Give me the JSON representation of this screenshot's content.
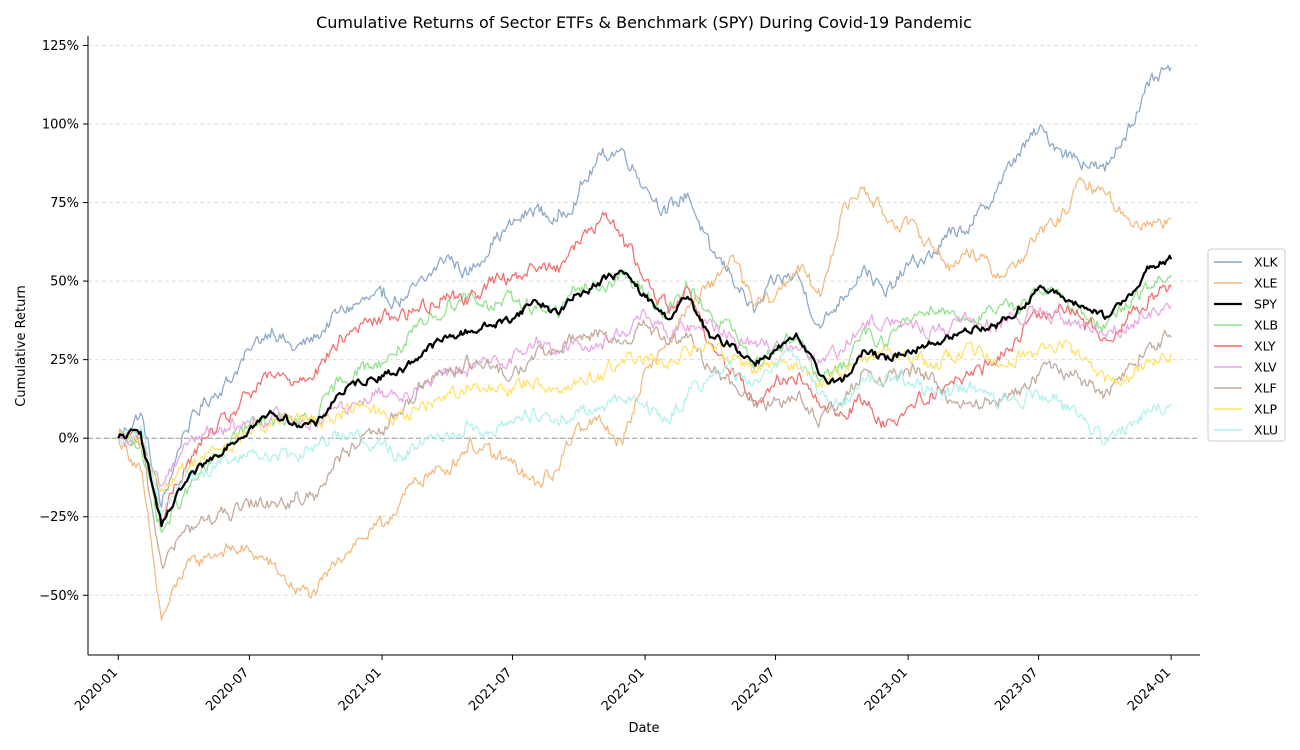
{
  "chart_data": {
    "type": "line",
    "title": "Cumulative Returns of Sector ETFs & Benchmark (SPY) During Covid-19 Pandemic",
    "xlabel": "Date",
    "ylabel": "Cumulative Return",
    "x_range": [
      "2019-11-20",
      "2024-02-10"
    ],
    "ylim": [
      -0.69,
      1.28
    ],
    "x_ticks": [
      "2020-01",
      "2020-07",
      "2021-01",
      "2021-07",
      "2022-01",
      "2022-07",
      "2023-01",
      "2023-07",
      "2024-01"
    ],
    "x_tick_dates": [
      "2020-01-01",
      "2020-07-01",
      "2021-01-01",
      "2021-07-01",
      "2022-01-01",
      "2022-07-01",
      "2023-01-01",
      "2023-07-01",
      "2024-01-01"
    ],
    "y_ticks": [
      -0.5,
      -0.25,
      0,
      0.25,
      0.5,
      0.75,
      1.0,
      1.25
    ],
    "y_tick_labels": [
      "−50%",
      "−25%",
      "0%",
      "25%",
      "50%",
      "75%",
      "100%",
      "125%"
    ],
    "grid": "horizontal dashed",
    "baseline": 0,
    "legend_position": "right",
    "series": [
      {
        "name": "XLK",
        "color": "#8aa7c4",
        "dates": [
          "2020-01",
          "2020-02",
          "2020-03",
          "2020-04",
          "2020-05",
          "2020-06",
          "2020-07",
          "2020-08",
          "2020-09",
          "2020-10",
          "2020-11",
          "2020-12",
          "2021-01",
          "2021-02",
          "2021-03",
          "2021-04",
          "2021-05",
          "2021-06",
          "2021-07",
          "2021-08",
          "2021-09",
          "2021-10",
          "2021-11",
          "2021-12",
          "2022-01",
          "2022-02",
          "2022-03",
          "2022-04",
          "2022-05",
          "2022-06",
          "2022-07",
          "2022-08",
          "2022-09",
          "2022-10",
          "2022-11",
          "2022-12",
          "2023-01",
          "2023-02",
          "2023-03",
          "2023-04",
          "2023-05",
          "2023-06",
          "2023-07",
          "2023-08",
          "2023-09",
          "2023-10",
          "2023-11",
          "2023-12",
          "2024-01"
        ],
        "values": [
          0.0,
          0.08,
          -0.22,
          0.02,
          0.12,
          0.18,
          0.28,
          0.35,
          0.28,
          0.32,
          0.4,
          0.43,
          0.45,
          0.44,
          0.5,
          0.58,
          0.52,
          0.62,
          0.68,
          0.73,
          0.69,
          0.78,
          0.9,
          0.92,
          0.8,
          0.72,
          0.78,
          0.6,
          0.52,
          0.4,
          0.5,
          0.52,
          0.35,
          0.45,
          0.55,
          0.45,
          0.55,
          0.58,
          0.65,
          0.68,
          0.78,
          0.9,
          0.98,
          0.92,
          0.88,
          0.85,
          0.98,
          1.12,
          1.18
        ]
      },
      {
        "name": "XLE",
        "color": "#f0b87a",
        "dates": [
          "2020-01",
          "2020-02",
          "2020-03",
          "2020-04",
          "2020-05",
          "2020-06",
          "2020-07",
          "2020-08",
          "2020-09",
          "2020-10",
          "2020-11",
          "2020-12",
          "2021-01",
          "2021-02",
          "2021-03",
          "2021-04",
          "2021-05",
          "2021-06",
          "2021-07",
          "2021-08",
          "2021-09",
          "2021-10",
          "2021-11",
          "2021-12",
          "2022-01",
          "2022-02",
          "2022-03",
          "2022-04",
          "2022-05",
          "2022-06",
          "2022-07",
          "2022-08",
          "2022-09",
          "2022-10",
          "2022-11",
          "2022-12",
          "2023-01",
          "2023-02",
          "2023-03",
          "2023-04",
          "2023-05",
          "2023-06",
          "2023-07",
          "2023-08",
          "2023-09",
          "2023-10",
          "2023-11",
          "2023-12",
          "2024-01"
        ],
        "values": [
          0.0,
          -0.1,
          -0.58,
          -0.42,
          -0.38,
          -0.35,
          -0.36,
          -0.4,
          -0.48,
          -0.5,
          -0.38,
          -0.32,
          -0.28,
          -0.18,
          -0.12,
          -0.1,
          -0.02,
          -0.05,
          -0.08,
          -0.15,
          -0.1,
          0.05,
          0.05,
          -0.02,
          0.22,
          0.3,
          0.42,
          0.48,
          0.58,
          0.42,
          0.45,
          0.55,
          0.45,
          0.72,
          0.8,
          0.7,
          0.68,
          0.62,
          0.55,
          0.6,
          0.52,
          0.55,
          0.65,
          0.7,
          0.82,
          0.78,
          0.7,
          0.68,
          0.7
        ]
      },
      {
        "name": "SPY",
        "color": "#000000",
        "dates": [
          "2020-01",
          "2020-02",
          "2020-03",
          "2020-04",
          "2020-05",
          "2020-06",
          "2020-07",
          "2020-08",
          "2020-09",
          "2020-10",
          "2020-11",
          "2020-12",
          "2021-01",
          "2021-02",
          "2021-03",
          "2021-04",
          "2021-05",
          "2021-06",
          "2021-07",
          "2021-08",
          "2021-09",
          "2021-10",
          "2021-11",
          "2021-12",
          "2022-01",
          "2022-02",
          "2022-03",
          "2022-04",
          "2022-05",
          "2022-06",
          "2022-07",
          "2022-08",
          "2022-09",
          "2022-10",
          "2022-11",
          "2022-12",
          "2023-01",
          "2023-02",
          "2023-03",
          "2023-04",
          "2023-05",
          "2023-06",
          "2023-07",
          "2023-08",
          "2023-09",
          "2023-10",
          "2023-11",
          "2023-12",
          "2024-01"
        ],
        "values": [
          0.0,
          0.02,
          -0.28,
          -0.15,
          -0.08,
          -0.02,
          0.03,
          0.08,
          0.05,
          0.04,
          0.14,
          0.18,
          0.2,
          0.22,
          0.28,
          0.32,
          0.34,
          0.36,
          0.38,
          0.44,
          0.4,
          0.46,
          0.5,
          0.53,
          0.45,
          0.38,
          0.45,
          0.32,
          0.3,
          0.24,
          0.28,
          0.32,
          0.2,
          0.18,
          0.28,
          0.25,
          0.28,
          0.3,
          0.32,
          0.35,
          0.36,
          0.4,
          0.48,
          0.45,
          0.42,
          0.38,
          0.45,
          0.54,
          0.57
        ]
      },
      {
        "name": "XLB",
        "color": "#8ee08a",
        "dates": [
          "2020-01",
          "2020-02",
          "2020-03",
          "2020-04",
          "2020-05",
          "2020-06",
          "2020-07",
          "2020-08",
          "2020-09",
          "2020-10",
          "2020-11",
          "2020-12",
          "2021-01",
          "2021-02",
          "2021-03",
          "2021-04",
          "2021-05",
          "2021-06",
          "2021-07",
          "2021-08",
          "2021-09",
          "2021-10",
          "2021-11",
          "2021-12",
          "2022-01",
          "2022-02",
          "2022-03",
          "2022-04",
          "2022-05",
          "2022-06",
          "2022-07",
          "2022-08",
          "2022-09",
          "2022-10",
          "2022-11",
          "2022-12",
          "2023-01",
          "2023-02",
          "2023-03",
          "2023-04",
          "2023-05",
          "2023-06",
          "2023-07",
          "2023-08",
          "2023-09",
          "2023-10",
          "2023-11",
          "2023-12",
          "2024-01"
        ],
        "values": [
          0.0,
          -0.02,
          -0.3,
          -0.18,
          -0.1,
          -0.02,
          0.04,
          0.06,
          0.05,
          0.06,
          0.18,
          0.22,
          0.24,
          0.3,
          0.36,
          0.42,
          0.46,
          0.42,
          0.44,
          0.42,
          0.4,
          0.48,
          0.48,
          0.52,
          0.46,
          0.4,
          0.48,
          0.4,
          0.35,
          0.22,
          0.3,
          0.32,
          0.18,
          0.22,
          0.35,
          0.3,
          0.38,
          0.42,
          0.4,
          0.38,
          0.4,
          0.42,
          0.48,
          0.45,
          0.4,
          0.35,
          0.42,
          0.48,
          0.52
        ]
      },
      {
        "name": "XLY",
        "color": "#f06a6a",
        "dates": [
          "2020-01",
          "2020-02",
          "2020-03",
          "2020-04",
          "2020-05",
          "2020-06",
          "2020-07",
          "2020-08",
          "2020-09",
          "2020-10",
          "2020-11",
          "2020-12",
          "2021-01",
          "2021-02",
          "2021-03",
          "2021-04",
          "2021-05",
          "2021-06",
          "2021-07",
          "2021-08",
          "2021-09",
          "2021-10",
          "2021-11",
          "2021-12",
          "2022-01",
          "2022-02",
          "2022-03",
          "2022-04",
          "2022-05",
          "2022-06",
          "2022-07",
          "2022-08",
          "2022-09",
          "2022-10",
          "2022-11",
          "2022-12",
          "2023-01",
          "2023-02",
          "2023-03",
          "2023-04",
          "2023-05",
          "2023-06",
          "2023-07",
          "2023-08",
          "2023-09",
          "2023-10",
          "2023-11",
          "2023-12",
          "2024-01"
        ],
        "values": [
          0.0,
          0.01,
          -0.26,
          -0.1,
          0.0,
          0.06,
          0.14,
          0.2,
          0.18,
          0.22,
          0.3,
          0.36,
          0.38,
          0.4,
          0.42,
          0.46,
          0.44,
          0.5,
          0.52,
          0.54,
          0.55,
          0.62,
          0.7,
          0.65,
          0.5,
          0.42,
          0.48,
          0.3,
          0.22,
          0.12,
          0.18,
          0.2,
          0.1,
          0.08,
          0.12,
          0.04,
          0.1,
          0.14,
          0.18,
          0.2,
          0.24,
          0.32,
          0.4,
          0.42,
          0.38,
          0.32,
          0.38,
          0.45,
          0.48
        ]
      },
      {
        "name": "XLV",
        "color": "#e8a4e2",
        "dates": [
          "2020-01",
          "2020-02",
          "2020-03",
          "2020-04",
          "2020-05",
          "2020-06",
          "2020-07",
          "2020-08",
          "2020-09",
          "2020-10",
          "2020-11",
          "2020-12",
          "2021-01",
          "2021-02",
          "2021-03",
          "2021-04",
          "2021-05",
          "2021-06",
          "2021-07",
          "2021-08",
          "2021-09",
          "2021-10",
          "2021-11",
          "2021-12",
          "2022-01",
          "2022-02",
          "2022-03",
          "2022-04",
          "2022-05",
          "2022-06",
          "2022-07",
          "2022-08",
          "2022-09",
          "2022-10",
          "2022-11",
          "2022-12",
          "2023-01",
          "2023-02",
          "2023-03",
          "2023-04",
          "2023-05",
          "2023-06",
          "2023-07",
          "2023-08",
          "2023-09",
          "2023-10",
          "2023-11",
          "2023-12",
          "2024-01"
        ],
        "values": [
          0.0,
          -0.02,
          -0.15,
          -0.02,
          0.02,
          0.03,
          0.05,
          0.07,
          0.06,
          0.05,
          0.1,
          0.12,
          0.15,
          0.14,
          0.18,
          0.2,
          0.22,
          0.24,
          0.26,
          0.3,
          0.28,
          0.3,
          0.3,
          0.34,
          0.4,
          0.32,
          0.36,
          0.38,
          0.32,
          0.3,
          0.3,
          0.28,
          0.24,
          0.28,
          0.36,
          0.38,
          0.36,
          0.34,
          0.35,
          0.38,
          0.36,
          0.38,
          0.4,
          0.38,
          0.36,
          0.33,
          0.36,
          0.4,
          0.42
        ]
      },
      {
        "name": "XLF",
        "color": "#c0a898",
        "dates": [
          "2020-01",
          "2020-02",
          "2020-03",
          "2020-04",
          "2020-05",
          "2020-06",
          "2020-07",
          "2020-08",
          "2020-09",
          "2020-10",
          "2020-11",
          "2020-12",
          "2021-01",
          "2021-02",
          "2021-03",
          "2021-04",
          "2021-05",
          "2021-06",
          "2021-07",
          "2021-08",
          "2021-09",
          "2021-10",
          "2021-11",
          "2021-12",
          "2022-01",
          "2022-02",
          "2022-03",
          "2022-04",
          "2022-05",
          "2022-06",
          "2022-07",
          "2022-08",
          "2022-09",
          "2022-10",
          "2022-11",
          "2022-12",
          "2023-01",
          "2023-02",
          "2023-03",
          "2023-04",
          "2023-05",
          "2023-06",
          "2023-07",
          "2023-08",
          "2023-09",
          "2023-10",
          "2023-11",
          "2023-12",
          "2024-01"
        ],
        "values": [
          0.0,
          -0.02,
          -0.4,
          -0.3,
          -0.26,
          -0.24,
          -0.22,
          -0.2,
          -0.2,
          -0.18,
          -0.06,
          -0.02,
          0.02,
          0.1,
          0.18,
          0.22,
          0.24,
          0.22,
          0.2,
          0.26,
          0.28,
          0.32,
          0.34,
          0.3,
          0.36,
          0.3,
          0.32,
          0.22,
          0.18,
          0.1,
          0.12,
          0.14,
          0.06,
          0.1,
          0.22,
          0.18,
          0.22,
          0.2,
          0.12,
          0.1,
          0.12,
          0.14,
          0.2,
          0.22,
          0.18,
          0.14,
          0.22,
          0.3,
          0.32
        ]
      },
      {
        "name": "XLP",
        "color": "#ffe066",
        "dates": [
          "2020-01",
          "2020-02",
          "2020-03",
          "2020-04",
          "2020-05",
          "2020-06",
          "2020-07",
          "2020-08",
          "2020-09",
          "2020-10",
          "2020-11",
          "2020-12",
          "2021-01",
          "2021-02",
          "2021-03",
          "2021-04",
          "2021-05",
          "2021-06",
          "2021-07",
          "2021-08",
          "2021-09",
          "2021-10",
          "2021-11",
          "2021-12",
          "2022-01",
          "2022-02",
          "2022-03",
          "2022-04",
          "2022-05",
          "2022-06",
          "2022-07",
          "2022-08",
          "2022-09",
          "2022-10",
          "2022-11",
          "2022-12",
          "2023-01",
          "2023-02",
          "2023-03",
          "2023-04",
          "2023-05",
          "2023-06",
          "2023-07",
          "2023-08",
          "2023-09",
          "2023-10",
          "2023-11",
          "2023-12",
          "2024-01"
        ],
        "values": [
          0.0,
          -0.02,
          -0.16,
          -0.1,
          -0.05,
          -0.03,
          0.02,
          0.05,
          0.06,
          0.05,
          0.08,
          0.1,
          0.08,
          0.06,
          0.1,
          0.14,
          0.16,
          0.15,
          0.16,
          0.18,
          0.16,
          0.18,
          0.2,
          0.25,
          0.26,
          0.22,
          0.28,
          0.3,
          0.24,
          0.22,
          0.24,
          0.22,
          0.18,
          0.2,
          0.26,
          0.28,
          0.26,
          0.24,
          0.26,
          0.28,
          0.25,
          0.26,
          0.28,
          0.3,
          0.25,
          0.18,
          0.2,
          0.24,
          0.27
        ]
      },
      {
        "name": "XLU",
        "color": "#aef0ec",
        "dates": [
          "2020-01",
          "2020-02",
          "2020-03",
          "2020-04",
          "2020-05",
          "2020-06",
          "2020-07",
          "2020-08",
          "2020-09",
          "2020-10",
          "2020-11",
          "2020-12",
          "2021-01",
          "2021-02",
          "2021-03",
          "2021-04",
          "2021-05",
          "2021-06",
          "2021-07",
          "2021-08",
          "2021-09",
          "2021-10",
          "2021-11",
          "2021-12",
          "2022-01",
          "2022-02",
          "2022-03",
          "2022-04",
          "2022-05",
          "2022-06",
          "2022-07",
          "2022-08",
          "2022-09",
          "2022-10",
          "2022-11",
          "2022-12",
          "2023-01",
          "2023-02",
          "2023-03",
          "2023-04",
          "2023-05",
          "2023-06",
          "2023-07",
          "2023-08",
          "2023-09",
          "2023-10",
          "2023-11",
          "2023-12",
          "2024-01"
        ],
        "values": [
          0.0,
          0.04,
          -0.25,
          -0.12,
          -0.1,
          -0.08,
          -0.04,
          -0.06,
          -0.05,
          -0.02,
          0.02,
          0.0,
          -0.02,
          -0.06,
          0.0,
          0.02,
          0.04,
          0.02,
          0.05,
          0.08,
          0.06,
          0.08,
          0.1,
          0.12,
          0.1,
          0.06,
          0.14,
          0.2,
          0.22,
          0.18,
          0.24,
          0.26,
          0.14,
          0.1,
          0.18,
          0.2,
          0.18,
          0.15,
          0.14,
          0.16,
          0.12,
          0.12,
          0.14,
          0.12,
          0.06,
          -0.02,
          0.04,
          0.09,
          0.11
        ]
      }
    ]
  }
}
